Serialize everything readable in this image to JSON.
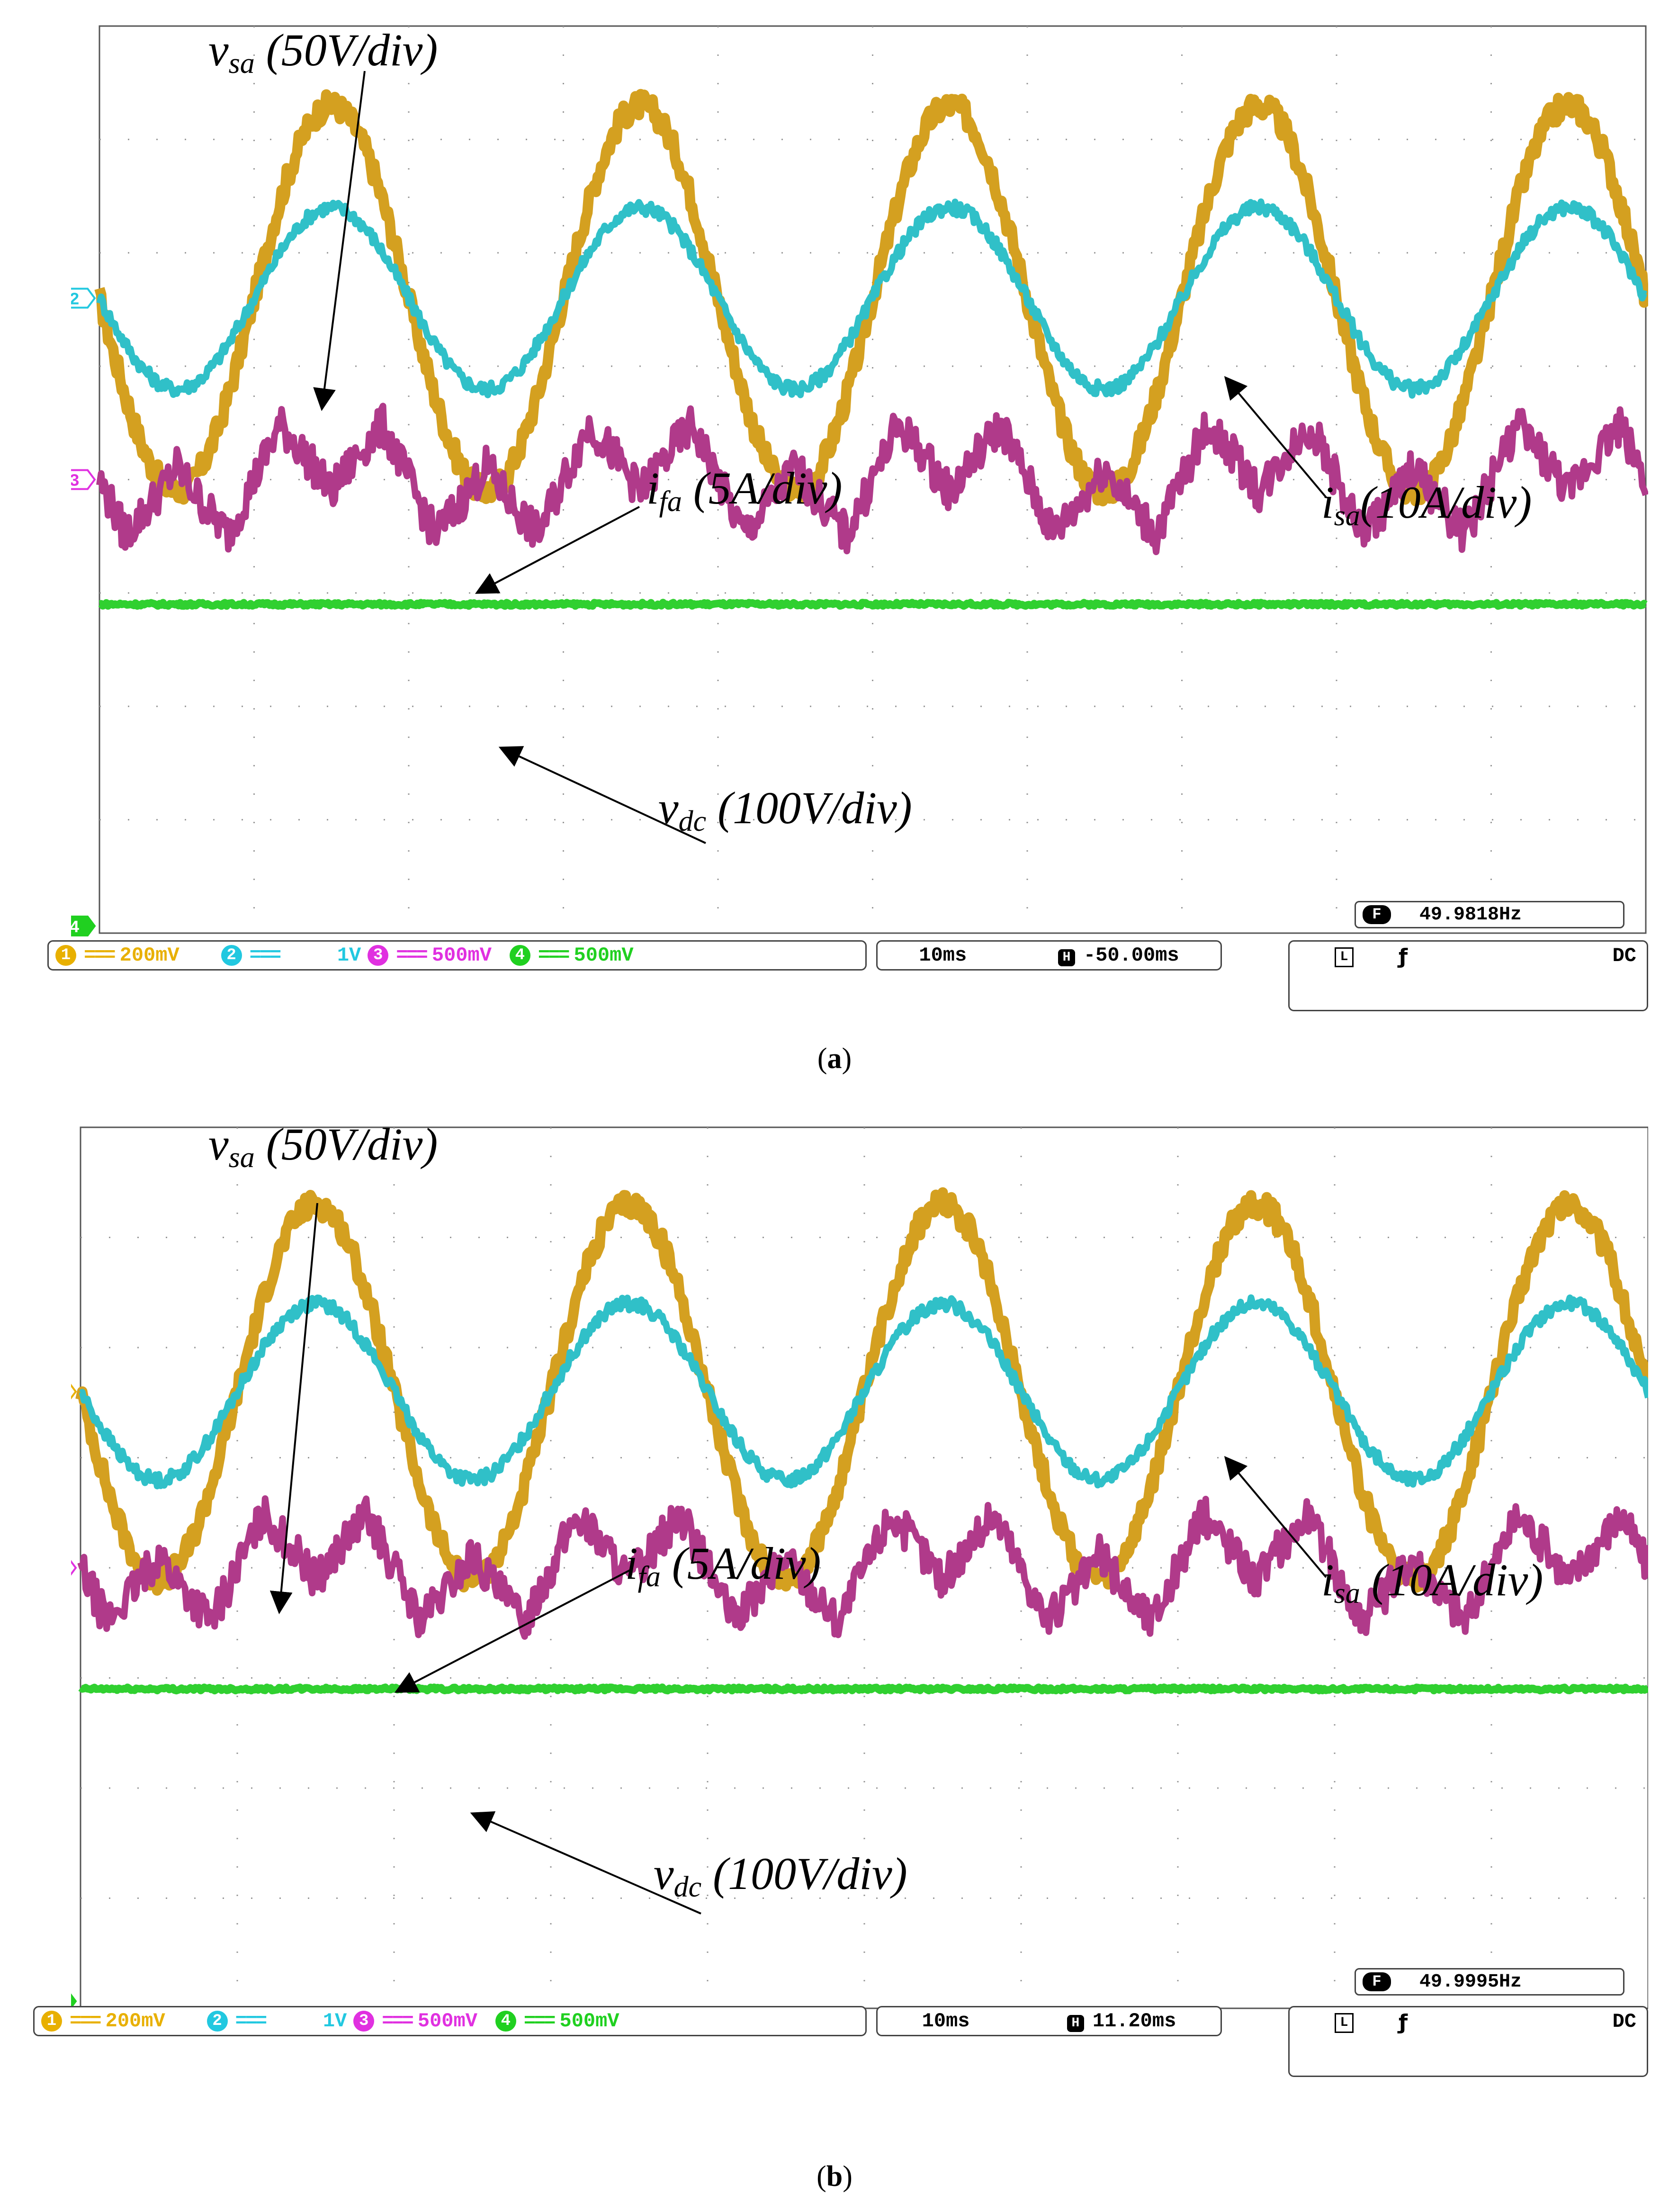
{
  "chart_data": [
    {
      "type": "line",
      "panel": "(a)",
      "caption_letter": "a",
      "time_per_div": "10ms",
      "horizontal_position": "-50.00ms",
      "frequency_readout": "49.9818Hz",
      "trigger_coupling": "DC",
      "trigger_mode_letter": "L",
      "trigger_slope_symbol": "ƒ",
      "channels": [
        {
          "num": "1",
          "coupling": "===",
          "scale": "200mV",
          "color": "#e8b000"
        },
        {
          "num": "2",
          "coupling": "===",
          "scale": "1V",
          "color": "#22c8e0"
        },
        {
          "num": "3",
          "coupling": "===",
          "scale": "500mV",
          "color": "#e030e0"
        },
        {
          "num": "4",
          "coupling": "===",
          "scale": "500mV",
          "color": "#20d020"
        }
      ],
      "ground_markers": [
        "2",
        "3",
        "4"
      ],
      "annotations": [
        {
          "var": "v",
          "sub": "sa",
          "text": " (50V/div)"
        },
        {
          "var": "i",
          "sub": "fa",
          "text": " (5A/div)"
        },
        {
          "var": "i",
          "sub": "sa",
          "text": "(10A/div)"
        },
        {
          "var": "v",
          "sub": "dc",
          "text": " (100V/div)"
        }
      ],
      "series": [
        {
          "name": "v_sa",
          "unit": "div",
          "frequency_hz": 50,
          "amplitude_div": 1.7,
          "offset_div": 1.6,
          "color": "#d4a020"
        },
        {
          "name": "i_sa",
          "unit": "div",
          "frequency_hz": 50,
          "amplitude_div": 0.8,
          "offset_div": 1.6,
          "color": "#30c0c8"
        },
        {
          "name": "i_fa",
          "unit": "div",
          "frequency_hz": 50,
          "amplitude_div": 0.6,
          "offset_div": 0.0,
          "color": "#b03a8a"
        },
        {
          "name": "v_dc",
          "unit": "div",
          "frequency_hz": 0,
          "amplitude_div": 0.0,
          "offset_div": -1.1,
          "color": "#30d030"
        }
      ],
      "xlim_div": [
        0,
        10
      ],
      "ylim_div": [
        -4,
        4
      ],
      "x_phase_deg": 180
    },
    {
      "type": "line",
      "panel": "(b)",
      "caption_letter": "b",
      "time_per_div": "10ms",
      "horizontal_position": "11.20ms",
      "frequency_readout": "49.9995Hz",
      "trigger_coupling": "DC",
      "trigger_mode_letter": "L",
      "trigger_slope_symbol": "ƒ",
      "channels": [
        {
          "num": "1",
          "coupling": "===",
          "scale": "200mV",
          "color": "#e8b000"
        },
        {
          "num": "2",
          "coupling": "===",
          "scale": "1V",
          "color": "#22c8e0"
        },
        {
          "num": "3",
          "coupling": "===",
          "scale": "500mV",
          "color": "#e030e0"
        },
        {
          "num": "4",
          "coupling": "===",
          "scale": "500mV",
          "color": "#20d020"
        }
      ],
      "ground_markers": [
        "1",
        "3",
        "4"
      ],
      "annotations": [
        {
          "var": "v",
          "sub": "sa",
          "text": " (50V/div)"
        },
        {
          "var": "i",
          "sub": "fa",
          "text": " (5A/div)"
        },
        {
          "var": "i",
          "sub": "sa",
          "text": " (10A/div)"
        },
        {
          "var": "v",
          "sub": "dc",
          "text": " (100V/div)"
        }
      ],
      "series": [
        {
          "name": "v_sa",
          "unit": "div",
          "frequency_hz": 50,
          "amplitude_div": 1.7,
          "offset_div": 1.6,
          "color": "#d4a020"
        },
        {
          "name": "i_sa",
          "unit": "div",
          "frequency_hz": 50,
          "amplitude_div": 0.8,
          "offset_div": 1.6,
          "color": "#30c0c8"
        },
        {
          "name": "i_fa",
          "unit": "div",
          "frequency_hz": 50,
          "amplitude_div": 0.6,
          "offset_div": 0.0,
          "color": "#b03a8a"
        },
        {
          "name": "v_dc",
          "unit": "div",
          "frequency_hz": 0,
          "amplitude_div": 0.0,
          "offset_div": -1.1,
          "color": "#30d030"
        }
      ],
      "xlim_div": [
        0,
        10
      ],
      "ylim_div": [
        -4,
        4
      ],
      "x_phase_deg": 180
    }
  ]
}
